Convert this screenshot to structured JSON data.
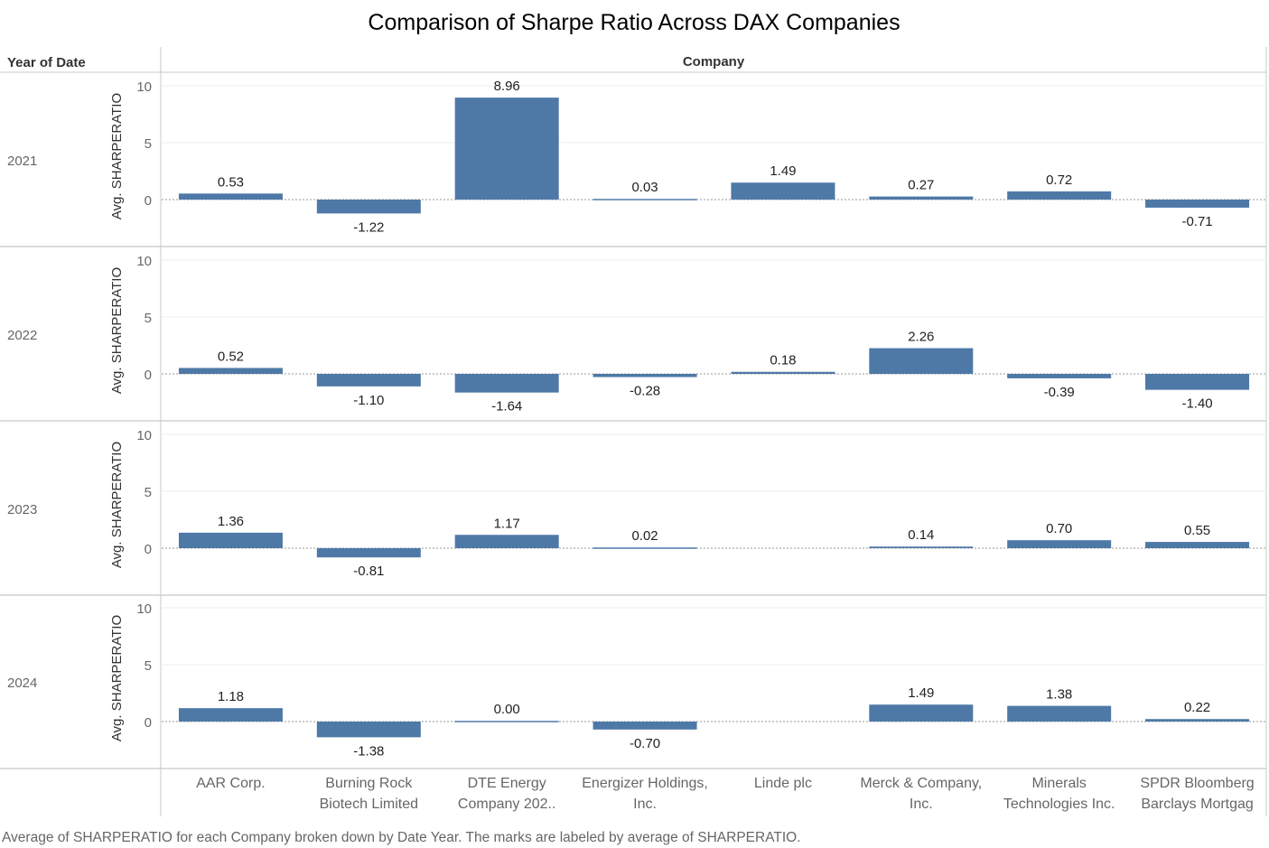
{
  "chart_data": {
    "type": "bar",
    "title": "Comparison of Sharpe Ratio Across DAX Companies",
    "row_header": "Year of Date",
    "column_header": "Company",
    "ylabel": "Avg. SHARPERATIO",
    "ylim": [
      -2.0,
      10.0
    ],
    "yticks": [
      0,
      5,
      10
    ],
    "grid": true,
    "colors": {
      "bar": "#4e79a7"
    },
    "categories": [
      [
        "AAR Corp."
      ],
      [
        "Burning Rock",
        "Biotech Limited"
      ],
      [
        "DTE Energy",
        "Company 202.."
      ],
      [
        "Energizer Holdings,",
        "Inc."
      ],
      [
        "Linde plc"
      ],
      [
        "Merck & Company,",
        "Inc."
      ],
      [
        "Minerals",
        "Technologies Inc."
      ],
      [
        "SPDR Bloomberg",
        "Barclays Mortgag"
      ]
    ],
    "panels": [
      {
        "year": "2021",
        "values": [
          0.53,
          -1.22,
          8.96,
          0.03,
          1.49,
          0.27,
          0.72,
          -0.71
        ],
        "labels": [
          "0.53",
          "-1.22",
          "8.96",
          "0.03",
          "1.49",
          "0.27",
          "0.72",
          "-0.71"
        ]
      },
      {
        "year": "2022",
        "values": [
          0.52,
          -1.1,
          -1.64,
          -0.28,
          0.18,
          2.26,
          -0.39,
          -1.4
        ],
        "labels": [
          "0.52",
          "-1.10",
          "-1.64",
          "-0.28",
          "0.18",
          "2.26",
          "-0.39",
          "-1.40"
        ]
      },
      {
        "year": "2023",
        "values": [
          1.36,
          -0.81,
          1.17,
          0.02,
          null,
          0.14,
          0.7,
          0.55
        ],
        "labels": [
          "1.36",
          "-0.81",
          "1.17",
          "0.02",
          null,
          "0.14",
          "0.70",
          "0.55"
        ]
      },
      {
        "year": "2024",
        "values": [
          1.18,
          -1.38,
          0.0,
          -0.7,
          null,
          1.49,
          1.38,
          0.22
        ],
        "labels": [
          "1.18",
          "-1.38",
          "0.00",
          "-0.70",
          null,
          "1.49",
          "1.38",
          "0.22"
        ]
      }
    ],
    "caption": "Average of SHARPERATIO for each Company broken down by Date Year.  The marks are labeled by average of SHARPERATIO."
  }
}
